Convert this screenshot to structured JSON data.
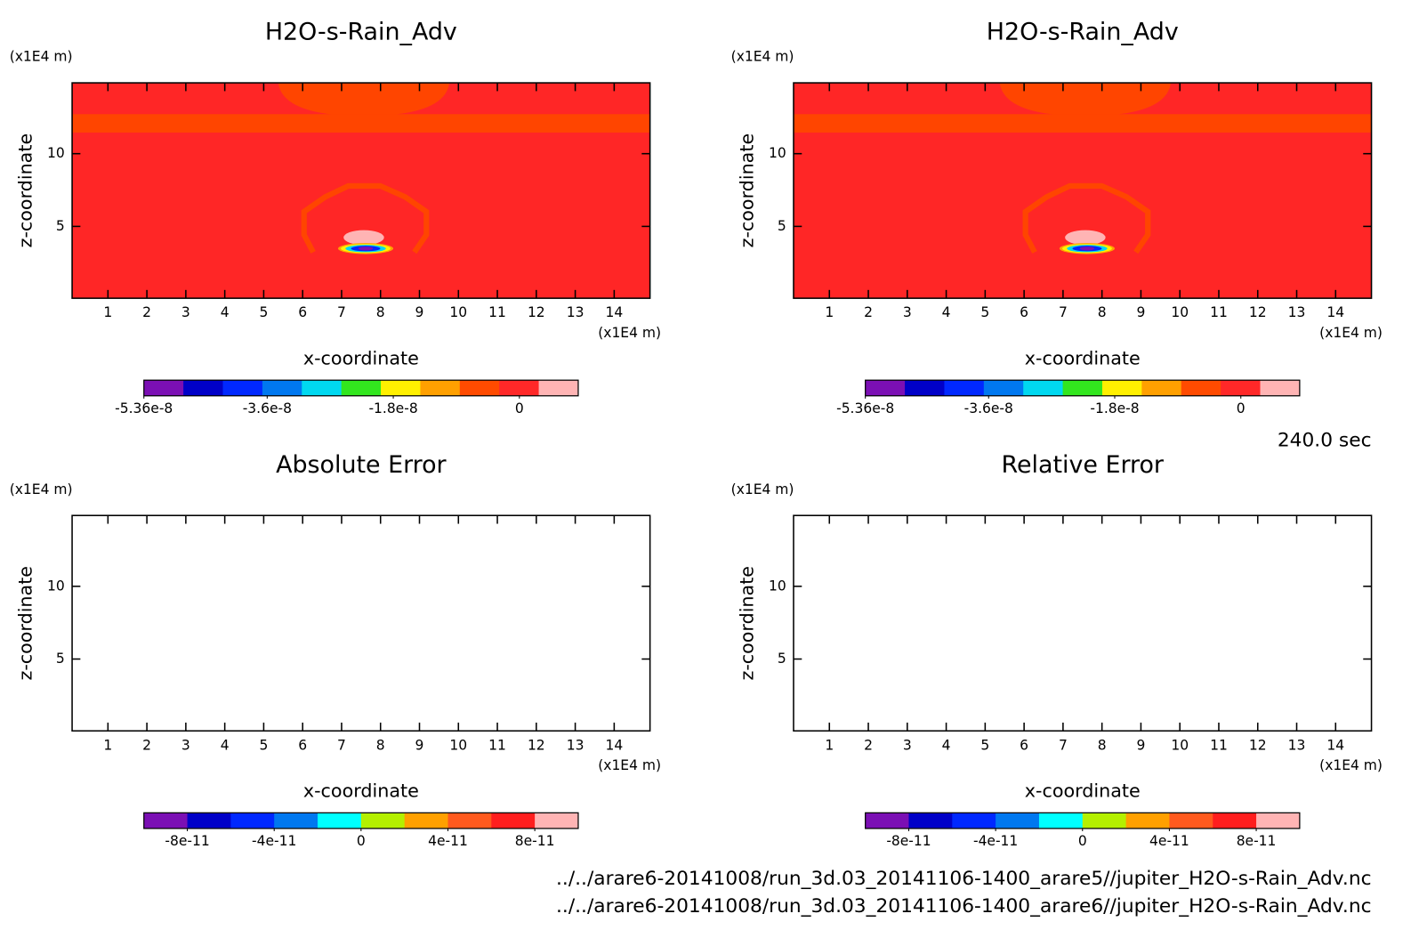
{
  "chart_data": [
    {
      "type": "contour",
      "title": "H2O-s-Rain_Adv",
      "xlabel": "x-coordinate",
      "ylabel": "z-coordinate",
      "x_unit": "(x1E4 m)",
      "y_unit": "(x1E4 m)",
      "xlim": [
        0.08,
        14.92
      ],
      "ylim": [
        0.06,
        14.87
      ],
      "xticks": [
        1,
        2,
        3,
        4,
        5,
        6,
        7,
        8,
        9,
        10,
        11,
        12,
        13,
        14
      ],
      "yticks": [
        5,
        10
      ],
      "colorbar": {
        "lim": [
          -5.36e-08,
          8.4e-09
        ],
        "ticks": [
          -5.36e-08,
          -3.6e-08,
          -1.8e-08,
          0
        ],
        "colors": [
          "#7b0fb4",
          "#0000c8",
          "#0028ff",
          "#0078f0",
          "#00d8f0",
          "#32e61e",
          "#fff000",
          "#ffa000",
          "#ff4b00",
          "#ff2828",
          "#ffb4b4"
        ]
      }
    },
    {
      "type": "contour",
      "title": "H2O-s-Rain_Adv",
      "xlabel": "x-coordinate",
      "ylabel": "z-coordinate",
      "x_unit": "(x1E4 m)",
      "y_unit": "(x1E4 m)",
      "xlim": [
        0.08,
        14.92
      ],
      "ylim": [
        0.06,
        14.87
      ],
      "xticks": [
        1,
        2,
        3,
        4,
        5,
        6,
        7,
        8,
        9,
        10,
        11,
        12,
        13,
        14
      ],
      "yticks": [
        5,
        10
      ],
      "colorbar": {
        "lim": [
          -5.36e-08,
          8.4e-09
        ],
        "ticks": [
          -5.36e-08,
          -3.6e-08,
          -1.8e-08,
          0
        ],
        "colors": [
          "#7b0fb4",
          "#0000c8",
          "#0028ff",
          "#0078f0",
          "#00d8f0",
          "#32e61e",
          "#fff000",
          "#ffa000",
          "#ff4b00",
          "#ff2828",
          "#ffb4b4"
        ]
      }
    },
    {
      "type": "contour",
      "title": "Absolute Error",
      "xlabel": "x-coordinate",
      "ylabel": "z-coordinate",
      "x_unit": "(x1E4 m)",
      "y_unit": "(x1E4 m)",
      "xlim": [
        0.08,
        14.92
      ],
      "ylim": [
        0.06,
        14.87
      ],
      "xticks": [
        1,
        2,
        3,
        4,
        5,
        6,
        7,
        8,
        9,
        10,
        11,
        12,
        13,
        14
      ],
      "yticks": [
        5,
        10
      ],
      "colorbar": {
        "lim": [
          -1e-10,
          1e-10
        ],
        "ticks": [
          -8e-11,
          -4e-11,
          0,
          4e-11,
          8e-11
        ],
        "colors": [
          "#7b0fb4",
          "#0000c8",
          "#0028ff",
          "#0078f0",
          "#00ffff",
          "#b4f000",
          "#ffa000",
          "#ff5a1e",
          "#ff1e1e",
          "#ffb4b4"
        ]
      }
    },
    {
      "type": "contour",
      "title": "Relative Error",
      "xlabel": "x-coordinate",
      "ylabel": "z-coordinate",
      "x_unit": "(x1E4 m)",
      "y_unit": "(x1E4 m)",
      "xlim": [
        0.08,
        14.92
      ],
      "ylim": [
        0.06,
        14.87
      ],
      "xticks": [
        1,
        2,
        3,
        4,
        5,
        6,
        7,
        8,
        9,
        10,
        11,
        12,
        13,
        14
      ],
      "yticks": [
        5,
        10
      ],
      "colorbar": {
        "lim": [
          -1e-10,
          1e-10
        ],
        "ticks": [
          -8e-11,
          -4e-11,
          0,
          4e-11,
          8e-11
        ],
        "colors": [
          "#7b0fb4",
          "#0000c8",
          "#0028ff",
          "#0078f0",
          "#00ffff",
          "#b4f000",
          "#ffa000",
          "#ff5a1e",
          "#ff1e1e",
          "#ffb4b4"
        ]
      }
    }
  ],
  "time_label": "240.0 sec",
  "files": [
    "../../arare6-20141008/run_3d.03_20141106-1400_arare5//jupiter_H2O-s-Rain_Adv.nc",
    "../../arare6-20141008/run_3d.03_20141106-1400_arare6//jupiter_H2O-s-Rain_Adv.nc"
  ]
}
